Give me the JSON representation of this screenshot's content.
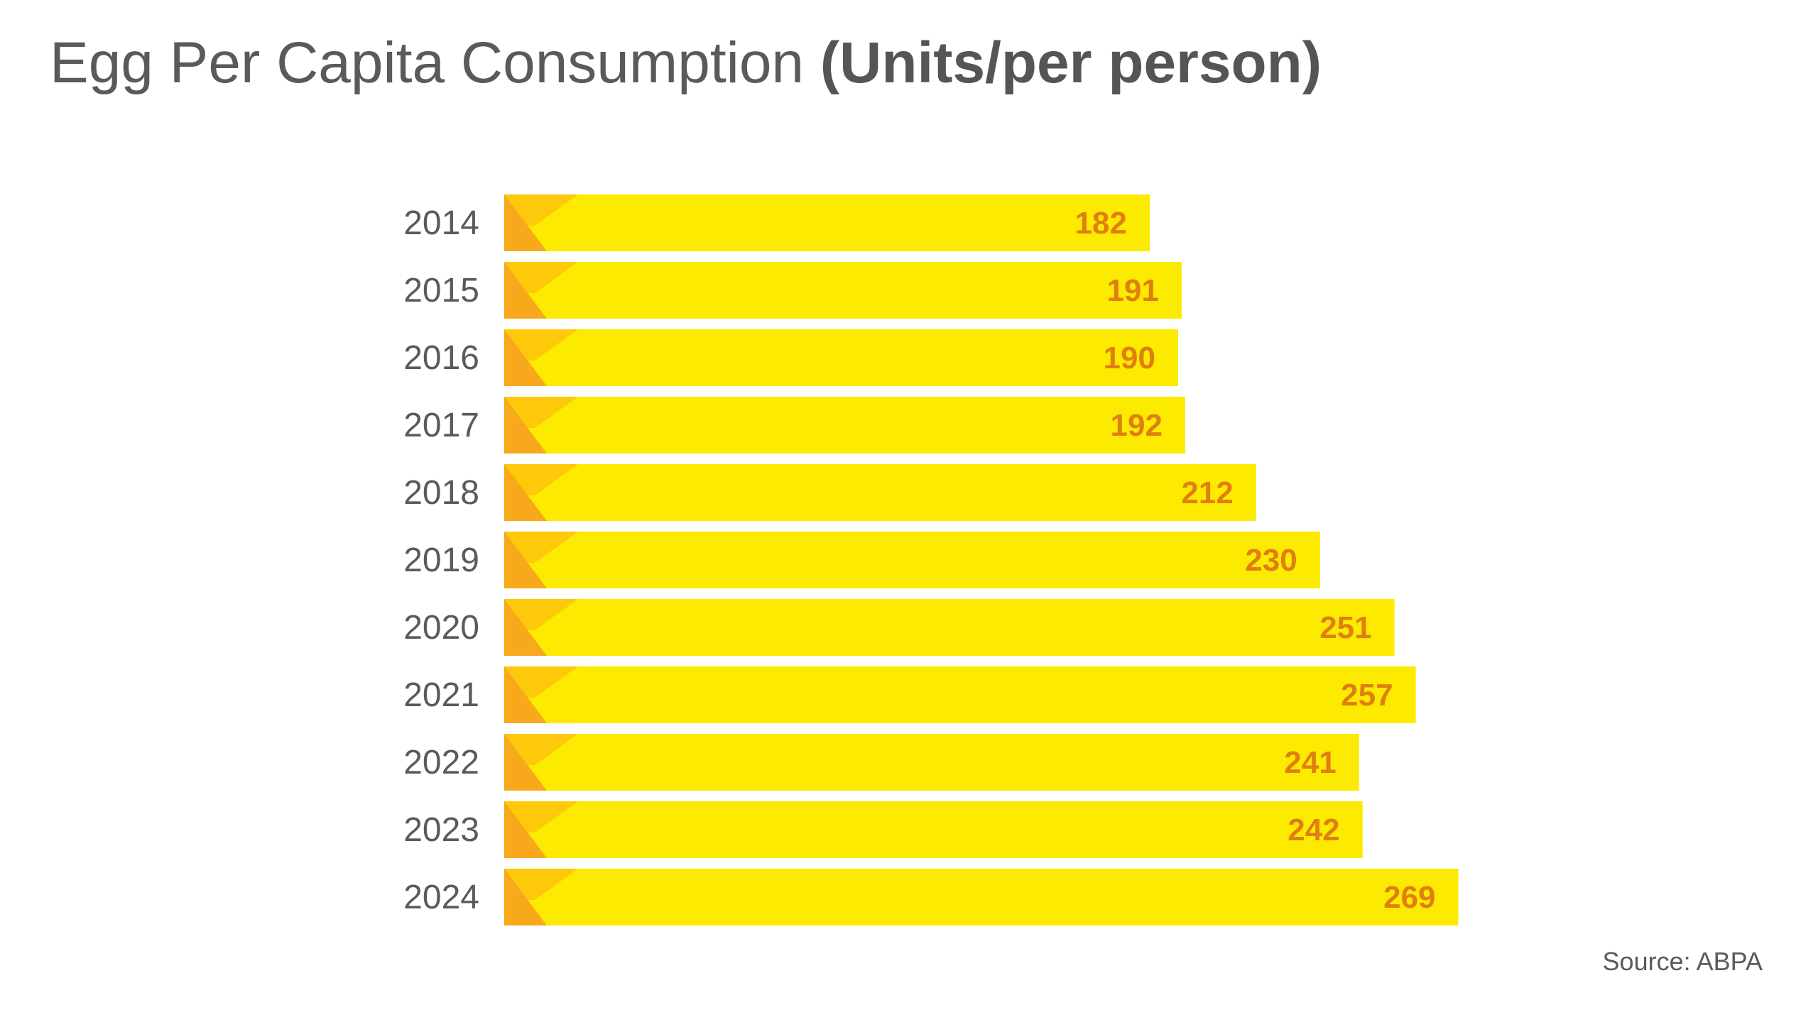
{
  "title": {
    "main": "Egg Per Capita Consumption",
    "unit": "(Units/per person)"
  },
  "source": "Source: ABPA",
  "colors": {
    "bar": "#fcea00",
    "bar_accent_dark": "#f7a81b",
    "bar_accent_light": "#fdc90a",
    "value_label": "#e07f10",
    "category_label": "#5a5a5a"
  },
  "chart_data": {
    "type": "bar",
    "orientation": "horizontal",
    "title": "Egg Per Capita Consumption (Units/per person)",
    "categories": [
      "2014",
      "2015",
      "2016",
      "2017",
      "2018",
      "2019",
      "2020",
      "2021",
      "2022",
      "2023",
      "2024"
    ],
    "values": [
      182,
      191,
      190,
      192,
      212,
      230,
      251,
      257,
      241,
      242,
      269
    ],
    "xlabel": "",
    "ylabel": "",
    "xlim": [
      0,
      269
    ],
    "grid": false,
    "legend": "none",
    "data_labels": true
  }
}
